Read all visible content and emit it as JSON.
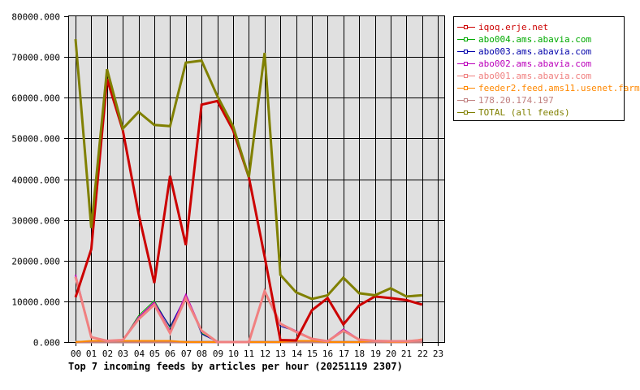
{
  "chart_data": {
    "type": "line",
    "title": "Top 7 incoming feeds by articles per hour (20251119 2307)",
    "xlabel": "",
    "ylabel": "",
    "ylim": [
      0,
      80000
    ],
    "yticks": [
      "0.000",
      "10000.000",
      "20000.000",
      "30000.000",
      "40000.000",
      "50000.000",
      "60000.000",
      "70000.000",
      "80000.000"
    ],
    "categories": [
      "00",
      "01",
      "02",
      "03",
      "04",
      "05",
      "06",
      "07",
      "08",
      "09",
      "10",
      "11",
      "12",
      "13",
      "14",
      "15",
      "16",
      "17",
      "18",
      "19",
      "20",
      "21",
      "22",
      "23"
    ],
    "grid": true,
    "legend_position": "right",
    "series": [
      {
        "name": "iqoq.erje.net",
        "color": "#cc0000",
        "width": 3,
        "values": [
          11000,
          22800,
          64600,
          52000,
          31500,
          14500,
          40800,
          23800,
          58300,
          59200,
          52000,
          40500,
          21000,
          500,
          400,
          7800,
          10800,
          4300,
          9000,
          11200,
          10800,
          10300,
          9200
        ]
      },
      {
        "name": "abo004.ams.abavia.com",
        "color": "#00aa00",
        "width": 1,
        "values": [
          16000,
          1200,
          300,
          500,
          6500,
          10200,
          3500,
          11200,
          2200,
          0,
          0,
          0,
          12000,
          4300,
          2700,
          800,
          200,
          3000,
          700,
          300,
          200,
          200,
          500
        ]
      },
      {
        "name": "abo003.ams.abavia.com",
        "color": "#0000aa",
        "width": 1,
        "values": [
          16200,
          1200,
          300,
          500,
          5800,
          9800,
          3800,
          11400,
          2000,
          0,
          0,
          0,
          12300,
          3900,
          2600,
          800,
          200,
          3000,
          600,
          300,
          200,
          200,
          500
        ]
      },
      {
        "name": "abo002.ams.abavia.com",
        "color": "#bb00bb",
        "width": 2,
        "values": [
          16500,
          1200,
          300,
          500,
          6000,
          9700,
          2600,
          11600,
          2800,
          0,
          0,
          0,
          12600,
          4500,
          2700,
          800,
          200,
          3100,
          600,
          300,
          200,
          200,
          500
        ]
      },
      {
        "name": "abo001.ams.abavia.com",
        "color": "#f08080",
        "width": 3,
        "values": [
          16000,
          1200,
          300,
          500,
          5600,
          9200,
          2200,
          10800,
          2800,
          0,
          0,
          0,
          12500,
          4500,
          2500,
          800,
          200,
          2800,
          600,
          300,
          200,
          200,
          500
        ]
      },
      {
        "name": "feeder2.feed.ams11.usenet.farm",
        "color": "#ff8800",
        "width": 2,
        "values": [
          0,
          300,
          300,
          300,
          300,
          300,
          300,
          0,
          0,
          0,
          0,
          0,
          0,
          0,
          300,
          300,
          0,
          0,
          0,
          300,
          0,
          0,
          700
        ]
      },
      {
        "name": "178.20.174.197",
        "color": "#c08080",
        "width": 3,
        "values": [
          0,
          0,
          0,
          0,
          0,
          0,
          0,
          0,
          0,
          0,
          0,
          0,
          0,
          0,
          0,
          0,
          0,
          0,
          0,
          0,
          0,
          0,
          0
        ]
      },
      {
        "name": "TOTAL (all feeds)",
        "color": "#808000",
        "width": 3,
        "values": [
          74400,
          28000,
          67000,
          52400,
          56500,
          53300,
          53000,
          68600,
          69100,
          60400,
          53000,
          40500,
          71000,
          16500,
          12200,
          10600,
          11500,
          15800,
          12000,
          11500,
          13200,
          11200,
          11500
        ]
      }
    ]
  }
}
